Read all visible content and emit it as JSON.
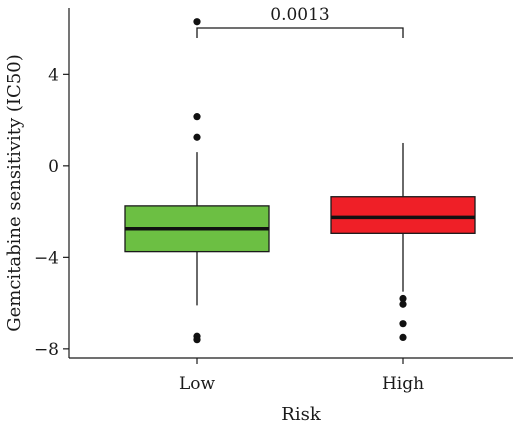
{
  "chart_data": {
    "type": "boxplot",
    "title": "",
    "xlabel": "Risk",
    "ylabel": "Gemcitabine sensitivity (IC50)",
    "ylim": [
      -8.4,
      6.9
    ],
    "yticks": [
      -8,
      -4,
      0,
      4
    ],
    "ytick_labels": [
      "−8",
      "−4",
      "0",
      "4"
    ],
    "categories": [
      "Low",
      "High"
    ],
    "boxes": [
      {
        "category": "Low",
        "color": "#6cbf43",
        "q1": -3.75,
        "median": -2.75,
        "q3": -1.75,
        "whisker_low": -6.1,
        "whisker_high": 0.6,
        "outliers": [
          6.3,
          2.15,
          1.25,
          -7.45,
          -7.6
        ]
      },
      {
        "category": "High",
        "color": "#ef1f27",
        "q1": -2.95,
        "median": -2.25,
        "q3": -1.35,
        "whisker_low": -5.5,
        "whisker_high": 1.0,
        "outliers": [
          -5.8,
          -6.05,
          -6.9,
          -7.5
        ]
      }
    ],
    "annotation": {
      "text": "0.0013",
      "between": [
        "Low",
        "High"
      ]
    },
    "grid": false,
    "legend": "none"
  }
}
